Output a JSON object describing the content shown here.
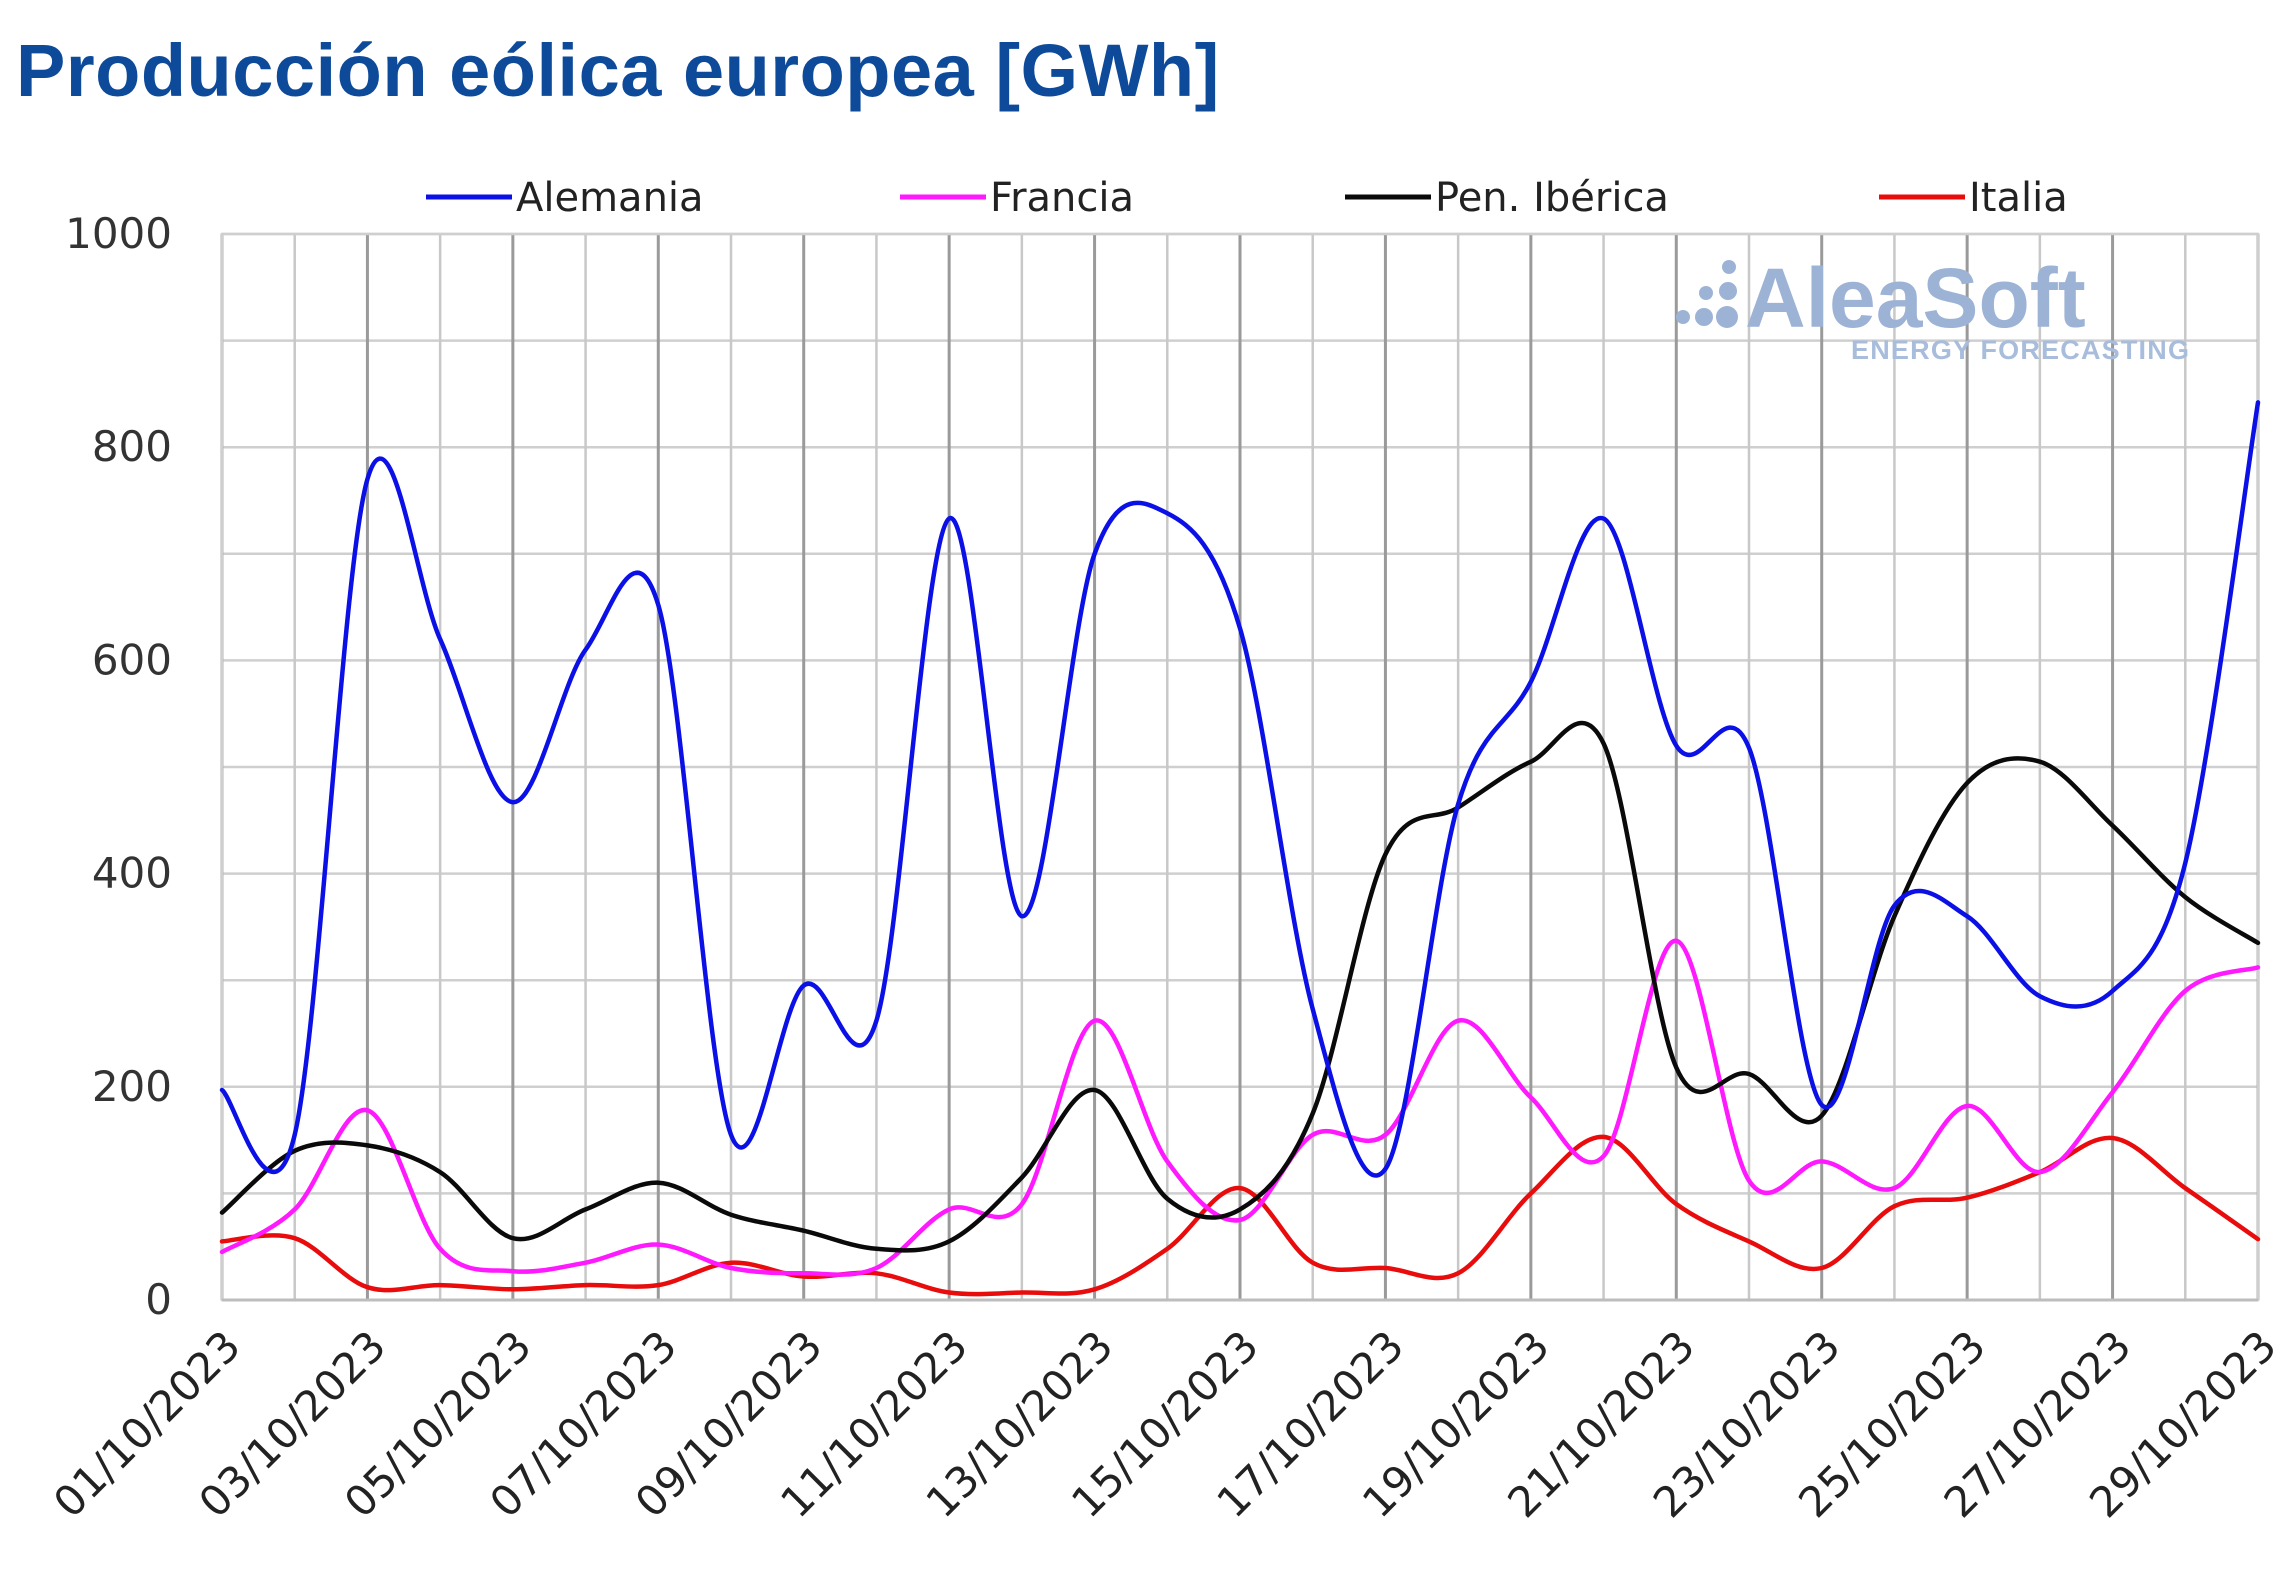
{
  "title": "Producción eólica europea [GWh]",
  "logo": {
    "name": "AleaSoft",
    "tagline": "ENERGY FORECASTING",
    "color": "#9db3d6"
  },
  "chart_data": {
    "type": "line",
    "title": "Producción eólica europea [GWh]",
    "xlabel": "",
    "ylabel": "",
    "ylim": [
      0,
      1000
    ],
    "y_ticks": [
      "0",
      "200",
      "400",
      "600",
      "800",
      "1000"
    ],
    "x_tick_labels": [
      "01/10/2023",
      "03/10/2023",
      "05/10/2023",
      "07/10/2023",
      "09/10/2023",
      "11/10/2023",
      "13/10/2023",
      "15/10/2023",
      "17/10/2023",
      "19/10/2023",
      "21/10/2023",
      "23/10/2023",
      "25/10/2023",
      "27/10/2023",
      "29/10/2023"
    ],
    "x": [
      "01/10/2023",
      "02/10/2023",
      "03/10/2023",
      "04/10/2023",
      "05/10/2023",
      "06/10/2023",
      "07/10/2023",
      "08/10/2023",
      "09/10/2023",
      "10/10/2023",
      "11/10/2023",
      "12/10/2023",
      "13/10/2023",
      "14/10/2023",
      "15/10/2023",
      "16/10/2023",
      "17/10/2023",
      "18/10/2023",
      "19/10/2023",
      "20/10/2023",
      "21/10/2023",
      "22/10/2023",
      "23/10/2023",
      "24/10/2023",
      "25/10/2023",
      "26/10/2023",
      "27/10/2023",
      "28/10/2023",
      "29/10/2023"
    ],
    "grid": true,
    "legend_position": "top",
    "series": [
      {
        "name": "Alemania",
        "color": "#0a10e6",
        "values": [
          197,
          155,
          770,
          620,
          467,
          610,
          652,
          155,
          295,
          262,
          733,
          360,
          700,
          738,
          630,
          273,
          123,
          465,
          580,
          733,
          520,
          518,
          183,
          370,
          360,
          285,
          290,
          410,
          842
        ]
      },
      {
        "name": "Francia",
        "color": "#ff19ff",
        "values": [
          45,
          85,
          178,
          48,
          27,
          35,
          52,
          30,
          25,
          30,
          85,
          90,
          262,
          130,
          75,
          155,
          155,
          262,
          190,
          135,
          337,
          112,
          130,
          105,
          182,
          120,
          195,
          290,
          312
        ]
      },
      {
        "name": "Pen. Ibérica",
        "color": "#0a0a0a",
        "values": [
          82,
          140,
          145,
          120,
          58,
          85,
          110,
          80,
          65,
          48,
          55,
          115,
          197,
          95,
          85,
          175,
          418,
          462,
          505,
          522,
          218,
          212,
          173,
          360,
          485,
          505,
          445,
          378,
          335
        ]
      },
      {
        "name": "Italia",
        "color": "#e80c0c",
        "values": [
          55,
          58,
          12,
          14,
          10,
          14,
          14,
          35,
          22,
          25,
          7,
          7,
          10,
          48,
          105,
          35,
          30,
          25,
          100,
          153,
          90,
          55,
          30,
          88,
          96,
          120,
          152,
          105,
          57
        ]
      }
    ]
  }
}
